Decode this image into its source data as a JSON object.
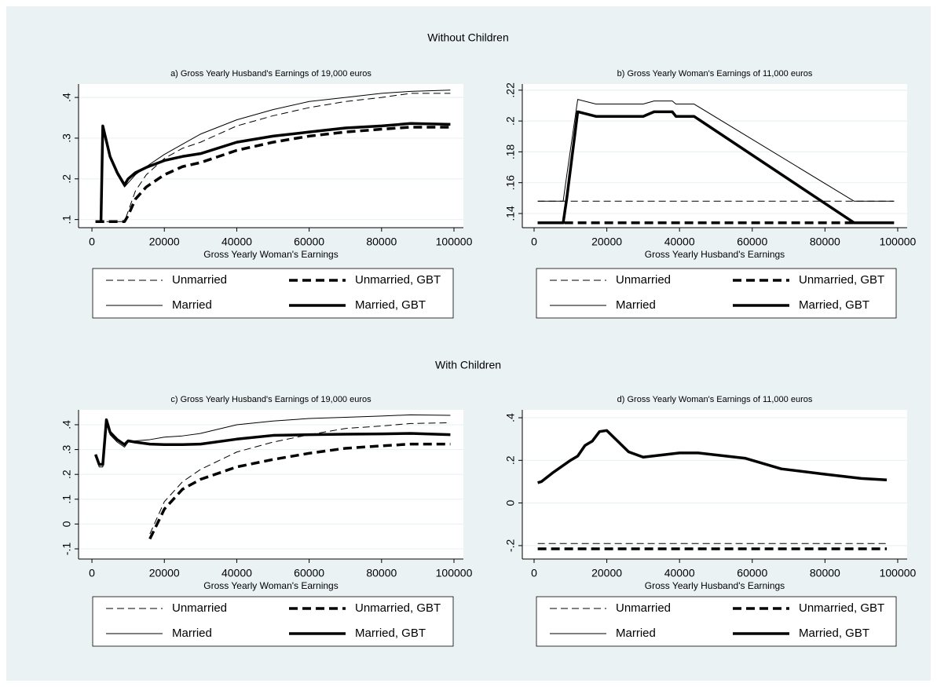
{
  "headings": [
    "Without Children",
    "With Children"
  ],
  "chart_data": [
    {
      "type": "line",
      "title": "a) Gross Yearly Husband's Earnings of 19,000 euros",
      "xlabel": "Gross Yearly Woman's Earnings",
      "x": [
        1000,
        2500,
        3000,
        5000,
        7000,
        9000,
        10000,
        12000,
        15000,
        20000,
        25000,
        30000,
        40000,
        50000,
        60000,
        70000,
        80000,
        88000,
        99000
      ],
      "xlim": [
        -3700,
        102600
      ],
      "xticks": [
        0,
        20000,
        40000,
        60000,
        80000,
        100000
      ],
      "ylim": [
        0.08,
        0.433
      ],
      "yticks": [
        {
          "value": 0.1,
          "label": ".1"
        },
        {
          "value": 0.2,
          "label": ".2"
        },
        {
          "value": 0.3,
          "label": ".3"
        },
        {
          "value": 0.4,
          "label": ".4"
        }
      ],
      "grid": true,
      "series": [
        {
          "name": "Unmarried",
          "color": "#000000",
          "dashed": true,
          "linewidth": 1,
          "values": [
            0.095,
            0.095,
            0.095,
            0.095,
            0.095,
            0.095,
            0.12,
            0.17,
            0.21,
            0.25,
            0.275,
            0.29,
            0.33,
            0.355,
            0.375,
            0.39,
            0.4,
            0.41,
            0.41
          ]
        },
        {
          "name": "Unmarried, GBT",
          "color": "#000000",
          "dashed": true,
          "linewidth": 3.5,
          "values": [
            0.095,
            0.095,
            0.095,
            0.095,
            0.095,
            0.095,
            0.11,
            0.15,
            0.18,
            0.21,
            0.23,
            0.24,
            0.27,
            0.29,
            0.305,
            0.315,
            0.322,
            0.327,
            0.327
          ]
        },
        {
          "name": "Married",
          "color": "#000000",
          "dashed": false,
          "linewidth": 1,
          "values": [
            0.095,
            0.095,
            0.33,
            0.25,
            0.21,
            0.18,
            0.19,
            0.21,
            0.23,
            0.26,
            0.285,
            0.31,
            0.345,
            0.37,
            0.39,
            0.4,
            0.41,
            0.415,
            0.418
          ]
        },
        {
          "name": "Married, GBT",
          "color": "#000000",
          "dashed": false,
          "linewidth": 3.5,
          "values": [
            0.095,
            0.095,
            0.33,
            0.255,
            0.215,
            0.185,
            0.2,
            0.215,
            0.228,
            0.245,
            0.255,
            0.262,
            0.29,
            0.305,
            0.315,
            0.325,
            0.33,
            0.336,
            0.334
          ]
        }
      ]
    },
    {
      "type": "line",
      "title": "b) Gross Yearly Woman's Earnings of 11,000 euros",
      "xlabel": "Gross Yearly Husband's Earnings",
      "x": [
        1000,
        8000,
        9000,
        12000,
        17000,
        30000,
        33000,
        38000,
        39000,
        44000,
        88000,
        99000
      ],
      "xlim": [
        -3240,
        102600
      ],
      "xticks": [
        0,
        20000,
        40000,
        60000,
        80000,
        100000
      ],
      "ylim": [
        0.1308,
        0.224
      ],
      "yticks": [
        {
          "value": 0.14,
          "label": ".14"
        },
        {
          "value": 0.16,
          "label": ".16"
        },
        {
          "value": 0.18,
          "label": ".18"
        },
        {
          "value": 0.2,
          "label": ".2"
        },
        {
          "value": 0.22,
          "label": ".22"
        }
      ],
      "grid": true,
      "series": [
        {
          "name": "Unmarried",
          "color": "#000000",
          "dashed": true,
          "linewidth": 1,
          "values": [
            0.148,
            0.148,
            0.148,
            0.148,
            0.148,
            0.148,
            0.148,
            0.148,
            0.148,
            0.148,
            0.148,
            0.148
          ]
        },
        {
          "name": "Unmarried, GBT",
          "color": "#000000",
          "dashed": true,
          "linewidth": 3.5,
          "values": [
            0.134,
            0.134,
            0.134,
            0.134,
            0.134,
            0.134,
            0.134,
            0.134,
            0.134,
            0.134,
            0.134,
            0.134
          ]
        },
        {
          "name": "Married",
          "color": "#000000",
          "dashed": false,
          "linewidth": 1,
          "values": [
            0.148,
            0.148,
            0.165,
            0.214,
            0.211,
            0.211,
            0.213,
            0.213,
            0.211,
            0.211,
            0.148,
            0.148
          ]
        },
        {
          "name": "Married, GBT",
          "color": "#000000",
          "dashed": false,
          "linewidth": 3.5,
          "values": [
            0.134,
            0.134,
            0.15,
            0.206,
            0.203,
            0.203,
            0.206,
            0.206,
            0.203,
            0.203,
            0.134,
            0.134
          ]
        }
      ]
    },
    {
      "type": "line",
      "title": "c) Gross Yearly Husband's Earnings of 19,000 euros",
      "xlabel": "Gross Yearly Woman's Earnings",
      "x": [
        1000,
        2000,
        3000,
        4000,
        5000,
        7000,
        9000,
        10000,
        12000,
        16000,
        20000,
        25000,
        30000,
        40000,
        50000,
        60000,
        70000,
        80000,
        88000,
        99000
      ],
      "xlim": [
        -3700,
        102600
      ],
      "xticks": [
        0,
        20000,
        40000,
        60000,
        80000,
        100000
      ],
      "ylim": [
        -0.141,
        0.46
      ],
      "yticks": [
        {
          "value": -0.1,
          "label": "-.1"
        },
        0,
        {
          "value": 0.1,
          "label": ".1"
        },
        {
          "value": 0.2,
          "label": ".2"
        },
        {
          "value": 0.3,
          "label": ".3"
        },
        {
          "value": 0.4,
          "label": ".4"
        }
      ],
      "grid": true,
      "series": [
        {
          "name": "Unmarried",
          "color": "#000000",
          "dashed": true,
          "linewidth": 1,
          "values": [
            null,
            null,
            null,
            null,
            null,
            null,
            null,
            null,
            null,
            -0.04,
            0.09,
            0.17,
            0.22,
            0.29,
            0.33,
            0.36,
            0.385,
            0.395,
            0.405,
            0.408
          ]
        },
        {
          "name": "Unmarried, GBT",
          "color": "#000000",
          "dashed": true,
          "linewidth": 3.5,
          "values": [
            null,
            null,
            null,
            null,
            null,
            null,
            null,
            null,
            null,
            -0.06,
            0.06,
            0.14,
            0.18,
            0.23,
            0.26,
            0.285,
            0.305,
            0.315,
            0.322,
            0.322
          ]
        },
        {
          "name": "Married",
          "color": "#000000",
          "dashed": false,
          "linewidth": 1,
          "values": [
            0.28,
            0.23,
            0.23,
            0.41,
            0.36,
            0.33,
            0.31,
            0.33,
            0.335,
            0.34,
            0.35,
            0.355,
            0.365,
            0.4,
            0.415,
            0.425,
            0.43,
            0.435,
            0.44,
            0.438
          ]
        },
        {
          "name": "Married, GBT",
          "color": "#000000",
          "dashed": false,
          "linewidth": 3.5,
          "values": [
            0.28,
            0.24,
            0.24,
            0.42,
            0.37,
            0.34,
            0.32,
            0.335,
            0.33,
            0.322,
            0.32,
            0.32,
            0.322,
            0.342,
            0.357,
            0.36,
            0.362,
            0.363,
            0.365,
            0.36
          ]
        }
      ]
    },
    {
      "type": "line",
      "title": "d) Gross Yearly Woman's Earnings of 11,000 euros",
      "xlabel": "Gross Yearly Husband's Earnings",
      "x": [
        1000,
        2000,
        5000,
        10000,
        12000,
        14000,
        16000,
        18000,
        20000,
        26000,
        30000,
        40000,
        45000,
        58000,
        68000,
        80000,
        90000,
        97000
      ],
      "xlim": [
        -3240,
        102600
      ],
      "xticks": [
        0,
        20000,
        40000,
        60000,
        80000,
        100000
      ],
      "ylim": [
        -0.263,
        0.437
      ],
      "yticks": [
        {
          "value": -0.2,
          "label": "-.2"
        },
        0,
        {
          "value": 0.2,
          "label": ".2"
        },
        {
          "value": 0.4,
          "label": ".4"
        }
      ],
      "grid": true,
      "series": [
        {
          "name": "Unmarried",
          "color": "#000000",
          "dashed": true,
          "linewidth": 1,
          "values": [
            -0.19,
            -0.19,
            -0.19,
            -0.19,
            -0.19,
            -0.19,
            -0.19,
            -0.19,
            -0.19,
            -0.19,
            -0.19,
            -0.19,
            -0.19,
            -0.19,
            -0.19,
            -0.19,
            -0.19,
            -0.19
          ]
        },
        {
          "name": "Unmarried, GBT",
          "color": "#000000",
          "dashed": true,
          "linewidth": 3.5,
          "values": [
            -0.215,
            -0.215,
            -0.215,
            -0.215,
            -0.215,
            -0.215,
            -0.215,
            -0.215,
            -0.215,
            -0.215,
            -0.215,
            -0.215,
            -0.215,
            -0.215,
            -0.215,
            -0.215,
            -0.215,
            -0.215
          ]
        },
        {
          "name": "Married",
          "color": "#000000",
          "dashed": false,
          "linewidth": 1,
          "values": [
            0.095,
            0.1,
            0.14,
            0.2,
            0.22,
            0.27,
            0.29,
            0.335,
            0.34,
            0.24,
            0.215,
            0.235,
            0.235,
            0.21,
            0.16,
            0.135,
            0.115,
            0.108
          ]
        },
        {
          "name": "Married, GBT",
          "color": "#000000",
          "dashed": false,
          "linewidth": 3.5,
          "values": [
            0.095,
            0.1,
            0.14,
            0.2,
            0.22,
            0.27,
            0.29,
            0.335,
            0.34,
            0.24,
            0.215,
            0.235,
            0.235,
            0.21,
            0.16,
            0.135,
            0.115,
            0.108
          ]
        }
      ]
    }
  ]
}
